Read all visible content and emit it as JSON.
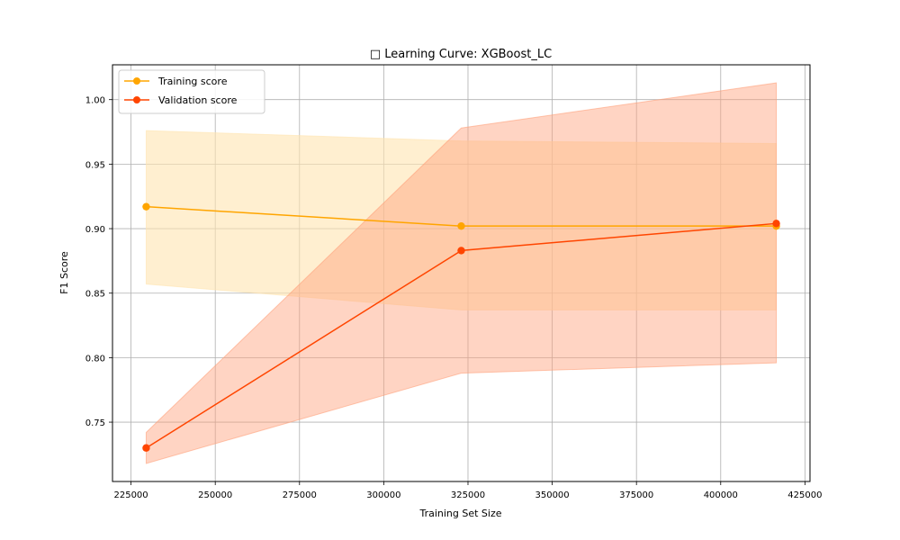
{
  "chart_data": {
    "type": "line",
    "title": "□ Learning Curve: XGBoost_LC",
    "xlabel": "Training Set Size",
    "ylabel": "F1 Score",
    "xlim": [
      219500,
      426500
    ],
    "ylim": [
      0.704,
      1.027
    ],
    "x_ticks": [
      225000,
      250000,
      275000,
      300000,
      325000,
      350000,
      375000,
      400000,
      425000
    ],
    "y_ticks": [
      0.75,
      0.8,
      0.85,
      0.9,
      0.95,
      1.0
    ],
    "x_tick_labels": [
      "225000",
      "250000",
      "275000",
      "300000",
      "325000",
      "350000",
      "375000",
      "400000",
      "425000"
    ],
    "y_tick_labels": [
      "0.75",
      "0.80",
      "0.85",
      "0.90",
      "0.95",
      "1.00"
    ],
    "grid": true,
    "legend_position": "top-left",
    "x": [
      229500,
      323000,
      416500
    ],
    "series": [
      {
        "name": "Training score",
        "color": "#ffa500",
        "band_color": "#ffe4b0",
        "values": [
          0.917,
          0.902,
          0.902
        ],
        "lower": [
          0.857,
          0.837,
          0.837
        ],
        "upper": [
          0.976,
          0.968,
          0.966
        ]
      },
      {
        "name": "Validation score",
        "color": "#ff4500",
        "band_color": "#ffa07a",
        "values": [
          0.73,
          0.883,
          0.904
        ],
        "lower": [
          0.718,
          0.788,
          0.796
        ],
        "upper": [
          0.742,
          0.978,
          1.013
        ]
      }
    ]
  }
}
